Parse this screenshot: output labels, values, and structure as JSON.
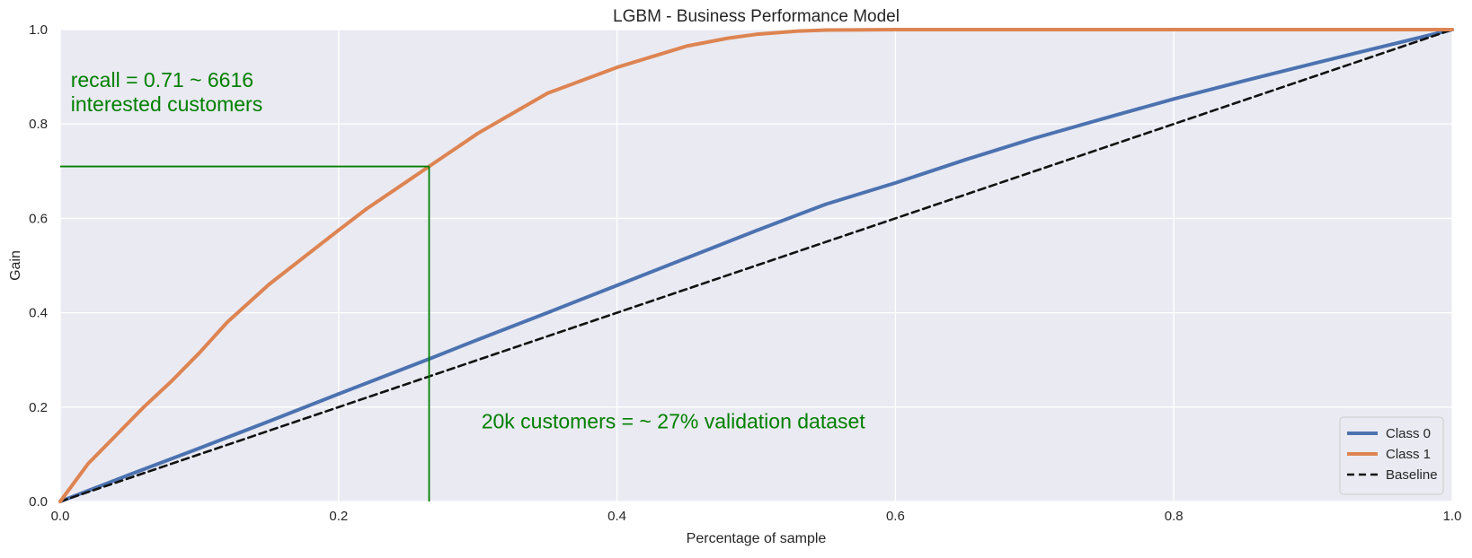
{
  "colors": {
    "background": "#eaeaf2",
    "grid": "#ffffff",
    "class0": "#4c72b0",
    "class1": "#dd8452",
    "baseline": "#111111",
    "annotation": "#008000",
    "text": "#262626"
  },
  "chart_data": {
    "type": "line",
    "title": "LGBM - Business Performance Model",
    "xlabel": "Percentage of sample",
    "ylabel": "Gain",
    "xlim": [
      0,
      1
    ],
    "ylim": [
      0,
      1
    ],
    "grid": true,
    "legend_position": "bottom-right",
    "xticks": [
      "0.0",
      "0.2",
      "0.4",
      "0.6",
      "0.8",
      "1.0"
    ],
    "yticks": [
      "0.0",
      "0.2",
      "0.4",
      "0.6",
      "0.8",
      "1.0"
    ],
    "series": [
      {
        "name": "Class 0",
        "style": "solid",
        "x": [
          0,
          0.05,
          0.1,
          0.15,
          0.2,
          0.265,
          0.3,
          0.35,
          0.4,
          0.45,
          0.5,
          0.55,
          0.6,
          0.65,
          0.7,
          0.75,
          0.8,
          0.85,
          0.9,
          0.95,
          1.0
        ],
        "y": [
          0,
          0.057,
          0.113,
          0.17,
          0.228,
          0.302,
          0.343,
          0.4,
          0.458,
          0.516,
          0.574,
          0.63,
          0.675,
          0.724,
          0.77,
          0.812,
          0.853,
          0.891,
          0.928,
          0.964,
          1.0
        ]
      },
      {
        "name": "Class 1",
        "style": "solid",
        "x": [
          0,
          0.01,
          0.02,
          0.04,
          0.06,
          0.08,
          0.1,
          0.12,
          0.15,
          0.2,
          0.22,
          0.25,
          0.265,
          0.3,
          0.35,
          0.4,
          0.45,
          0.48,
          0.5,
          0.53,
          0.55,
          0.6,
          0.7,
          0.8,
          0.9,
          1.0
        ],
        "y": [
          0,
          0.04,
          0.08,
          0.14,
          0.2,
          0.255,
          0.315,
          0.38,
          0.46,
          0.575,
          0.62,
          0.68,
          0.71,
          0.78,
          0.865,
          0.92,
          0.965,
          0.982,
          0.99,
          0.997,
          0.999,
          1.0,
          1.0,
          1.0,
          1.0,
          1.0
        ]
      },
      {
        "name": "Baseline",
        "style": "dashed",
        "x": [
          0,
          1
        ],
        "y": [
          0,
          1
        ]
      }
    ],
    "reference_lines": {
      "x": 0.265,
      "y": 0.71
    },
    "annotations": [
      {
        "lines": [
          "recall = 0.71 ~ 6616",
          "interested customers"
        ],
        "x": 0.005,
        "y": 0.845
      },
      {
        "lines": [
          "20k customers = ~ 27% validation dataset"
        ],
        "x": 0.3,
        "y": 0.155
      }
    ]
  }
}
